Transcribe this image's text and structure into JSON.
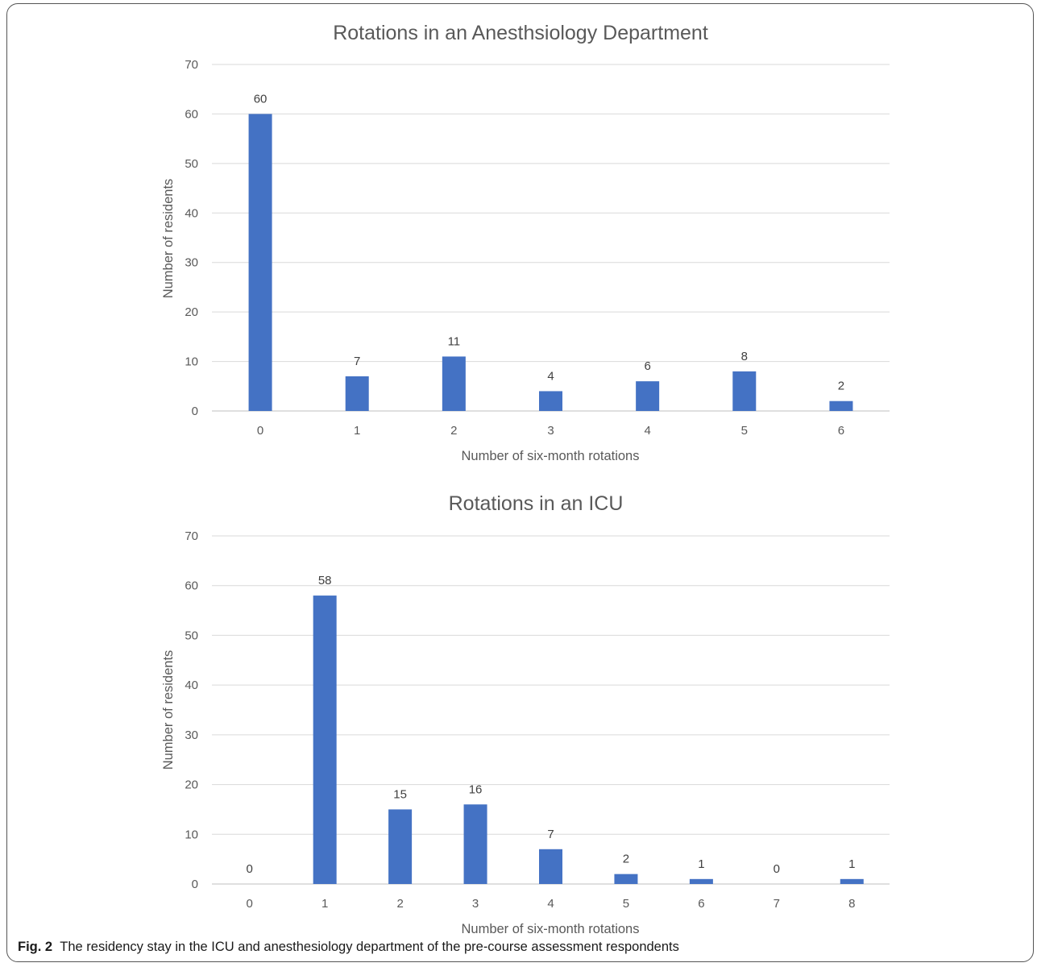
{
  "chart_data": [
    {
      "type": "bar",
      "title": "Rotations in an Anesthsiology Department",
      "xlabel": "Number of six-month rotations",
      "ylabel": "Number of residents",
      "categories": [
        "0",
        "1",
        "2",
        "3",
        "4",
        "5",
        "6"
      ],
      "values": [
        60,
        7,
        11,
        4,
        6,
        8,
        2
      ],
      "yticks": [
        "0",
        "10",
        "20",
        "30",
        "40",
        "50",
        "60",
        "70"
      ],
      "ylim": [
        0,
        70
      ],
      "grid": true,
      "bar_color": "#4472C4",
      "data_labels": true
    },
    {
      "type": "bar",
      "title": "Rotations in an ICU",
      "xlabel": "Number of six-month rotations",
      "ylabel": "Number of residents",
      "categories": [
        "0",
        "1",
        "2",
        "3",
        "4",
        "5",
        "6",
        "7",
        "8"
      ],
      "values": [
        0,
        58,
        15,
        16,
        7,
        2,
        1,
        0,
        1
      ],
      "yticks": [
        "0",
        "10",
        "20",
        "30",
        "40",
        "50",
        "60",
        "70"
      ],
      "ylim": [
        0,
        70
      ],
      "grid": true,
      "bar_color": "#4472C4",
      "data_labels": true
    }
  ],
  "caption": {
    "label": "Fig. 2",
    "text": "The residency stay in the ICU and anesthesiology department of the pre-course assessment respondents"
  }
}
